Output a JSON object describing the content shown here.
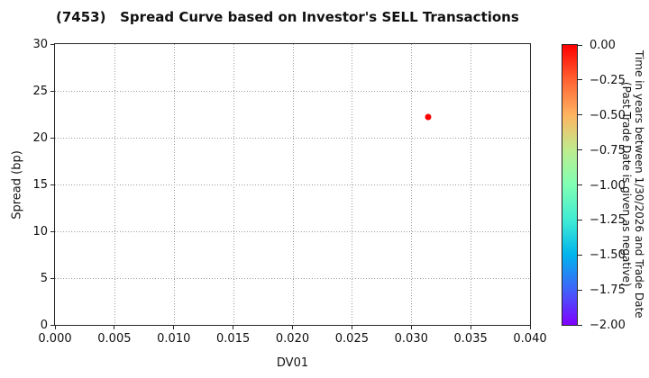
{
  "title": "(7453)   Spread Curve based on Investor's SELL Transactions",
  "chart_data": {
    "type": "scatter",
    "title": "(7453)   Spread Curve based on Investor's SELL Transactions",
    "xlabel": "DV01",
    "ylabel": "Spread (bp)",
    "xlim": [
      0.0,
      0.04
    ],
    "ylim": [
      0,
      30
    ],
    "x_tick_labels": [
      "0.000",
      "0.005",
      "0.010",
      "0.015",
      "0.020",
      "0.025",
      "0.030",
      "0.035",
      "0.040"
    ],
    "y_tick_labels": [
      "0",
      "5",
      "10",
      "15",
      "20",
      "25",
      "30"
    ],
    "grid": "dotted",
    "legend_position": "none",
    "points": [
      {
        "dv01": 0.0314,
        "spread_bp": 22.2,
        "time_years": 0.0,
        "color": "#ff0000"
      }
    ],
    "colorbar": {
      "title_line1": "Time in years between 1/30/2026 and Trade Date",
      "title_line2": "(Past Trade Date is given as negative)",
      "tick_labels": [
        "0.00",
        "−0.25",
        "−0.50",
        "−0.75",
        "−1.00",
        "−1.25",
        "−1.50",
        "−1.75",
        "−2.00"
      ],
      "vmax": 0.0,
      "vmin": -2.0,
      "colormap": "rainbow",
      "gradient_top_to_bottom": [
        "#ff0000",
        "#ff6232",
        "#ffb461",
        "#bfec8e",
        "#80ffb4",
        "#40ecd4",
        "#00b4ec",
        "#4062fa",
        "#8000ff"
      ]
    }
  }
}
